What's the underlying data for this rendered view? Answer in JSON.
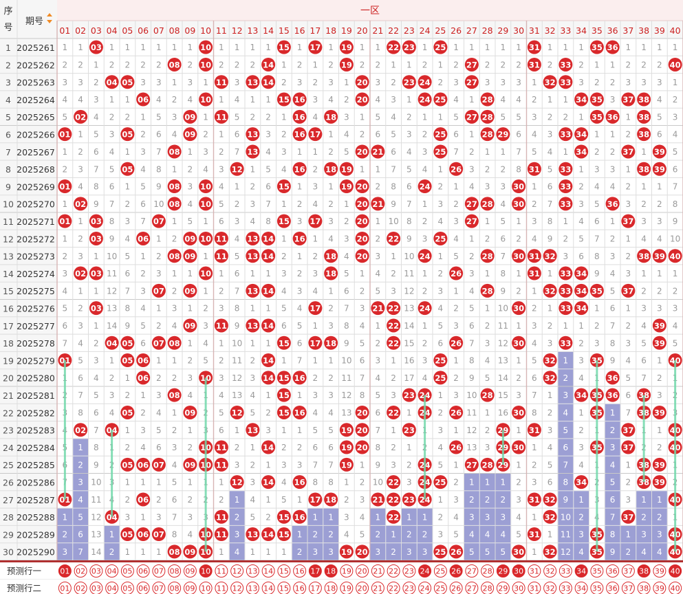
{
  "header": {
    "seq_label": "序号",
    "period_label": "期号",
    "zone_label": "一区",
    "sort_icon": "sort-arrows-icon"
  },
  "numbers": [
    "01",
    "02",
    "03",
    "04",
    "05",
    "06",
    "07",
    "08",
    "09",
    "10",
    "11",
    "12",
    "13",
    "14",
    "15",
    "16",
    "17",
    "18",
    "19",
    "20",
    "21",
    "22",
    "23",
    "24",
    "25",
    "26",
    "27",
    "28",
    "29",
    "30",
    "31",
    "32",
    "33",
    "34",
    "35",
    "36",
    "37",
    "38",
    "39",
    "40"
  ],
  "rows": [
    {
      "seq": "1",
      "period": "2025261",
      "hits": [
        "03",
        "10",
        "15",
        "17",
        "19",
        "22",
        "23",
        "25",
        "31",
        "35",
        "36"
      ]
    },
    {
      "seq": "2",
      "period": "2025262",
      "hits": [
        "08",
        "10",
        "14",
        "19",
        "27",
        "31",
        "33",
        "40"
      ]
    },
    {
      "seq": "3",
      "period": "2025263",
      "hits": [
        "04",
        "05",
        "11",
        "13",
        "14",
        "20",
        "23",
        "24",
        "27",
        "32",
        "33"
      ]
    },
    {
      "seq": "4",
      "period": "2025264",
      "hits": [
        "06",
        "10",
        "15",
        "16",
        "20",
        "24",
        "25",
        "28",
        "34",
        "35",
        "37",
        "38"
      ]
    },
    {
      "seq": "5",
      "period": "2025265",
      "hits": [
        "02",
        "09",
        "11",
        "16",
        "18",
        "27",
        "28",
        "35",
        "36",
        "38"
      ]
    },
    {
      "seq": "6",
      "period": "2025266",
      "hits": [
        "01",
        "05",
        "09",
        "13",
        "16",
        "17",
        "25",
        "28",
        "29",
        "33",
        "34",
        "38"
      ]
    },
    {
      "seq": "7",
      "period": "2025267",
      "hits": [
        "08",
        "13",
        "20",
        "21",
        "25",
        "34",
        "37",
        "39"
      ]
    },
    {
      "seq": "8",
      "period": "2025268",
      "hits": [
        "05",
        "12",
        "16",
        "18",
        "19",
        "26",
        "31",
        "33",
        "38",
        "39"
      ]
    },
    {
      "seq": "9",
      "period": "2025269",
      "hits": [
        "01",
        "08",
        "10",
        "15",
        "19",
        "20",
        "24",
        "30",
        "33"
      ]
    },
    {
      "seq": "10",
      "period": "2025270",
      "hits": [
        "02",
        "08",
        "10",
        "20",
        "21",
        "27",
        "28",
        "30",
        "33",
        "36"
      ]
    },
    {
      "seq": "11",
      "period": "2025271",
      "hits": [
        "01",
        "03",
        "07",
        "15",
        "17",
        "20",
        "27",
        "37"
      ]
    },
    {
      "seq": "12",
      "period": "2025272",
      "hits": [
        "03",
        "06",
        "09",
        "10",
        "11",
        "13",
        "14",
        "16",
        "20",
        "22",
        "25"
      ]
    },
    {
      "seq": "13",
      "period": "2025273",
      "hits": [
        "08",
        "09",
        "11",
        "13",
        "14",
        "18",
        "20",
        "24",
        "28",
        "30",
        "31",
        "32",
        "38",
        "39",
        "40"
      ]
    },
    {
      "seq": "14",
      "period": "2025274",
      "hits": [
        "02",
        "03",
        "10",
        "18",
        "26",
        "31",
        "33",
        "34"
      ]
    },
    {
      "seq": "15",
      "period": "2025275",
      "hits": [
        "07",
        "09",
        "13",
        "14",
        "28",
        "32",
        "33",
        "34",
        "35",
        "37"
      ]
    },
    {
      "seq": "16",
      "period": "2025276",
      "hits": [
        "03",
        "17",
        "21",
        "22",
        "24",
        "30",
        "33",
        "34"
      ]
    },
    {
      "seq": "17",
      "period": "2025277",
      "hits": [
        "09",
        "11",
        "13",
        "14",
        "22",
        "39"
      ]
    },
    {
      "seq": "18",
      "period": "2025278",
      "hits": [
        "04",
        "05",
        "07",
        "08",
        "15",
        "17",
        "18",
        "22",
        "26",
        "30",
        "33",
        "39"
      ]
    },
    {
      "seq": "19",
      "period": "2025279",
      "hits": [
        "01",
        "05",
        "06",
        "14",
        "25",
        "32",
        "35",
        "40"
      ]
    },
    {
      "seq": "20",
      "period": "2025280",
      "hits": [
        "06",
        "10",
        "14",
        "15",
        "16",
        "25",
        "32",
        "36"
      ]
    },
    {
      "seq": "21",
      "period": "2025281",
      "hits": [
        "08",
        "15",
        "23",
        "24",
        "28",
        "34",
        "35",
        "36",
        "38"
      ]
    },
    {
      "seq": "22",
      "period": "2025282",
      "hits": [
        "05",
        "09",
        "12",
        "15",
        "16",
        "20",
        "22",
        "24",
        "26",
        "30",
        "35",
        "38",
        "39"
      ]
    },
    {
      "seq": "23",
      "period": "2025283",
      "hits": [
        "02",
        "04",
        "13",
        "19",
        "20",
        "23",
        "29",
        "31",
        "37",
        "40"
      ]
    },
    {
      "seq": "24",
      "period": "2025284",
      "hits": [
        "10",
        "11",
        "14",
        "19",
        "20",
        "26",
        "29",
        "30",
        "35",
        "37",
        "40"
      ]
    },
    {
      "seq": "25",
      "period": "2025285",
      "hits": [
        "05",
        "06",
        "07",
        "09",
        "10",
        "11",
        "19",
        "24",
        "27",
        "28",
        "29",
        "38",
        "39"
      ]
    },
    {
      "seq": "26",
      "period": "2025286",
      "hits": [
        "12",
        "14",
        "16",
        "22",
        "24",
        "25",
        "34",
        "38",
        "39"
      ]
    },
    {
      "seq": "27",
      "period": "2025287",
      "hits": [
        "01",
        "06",
        "17",
        "18",
        "21",
        "22",
        "23",
        "24",
        "31",
        "32",
        "40"
      ]
    },
    {
      "seq": "28",
      "period": "2025288",
      "hits": [
        "04",
        "11",
        "15",
        "16",
        "22",
        "32",
        "37"
      ]
    },
    {
      "seq": "29",
      "period": "2025289",
      "hits": [
        "05",
        "06",
        "07",
        "10",
        "11",
        "13",
        "14",
        "15",
        "31",
        "35",
        "40"
      ]
    },
    {
      "seq": "30",
      "period": "2025290",
      "hits": [
        "08",
        "09",
        "10",
        "19",
        "20",
        "25",
        "26",
        "30",
        "32",
        "35",
        "40"
      ]
    }
  ],
  "predict": [
    {
      "label": "预测行一",
      "hits": [
        "01",
        "10",
        "17",
        "18",
        "24",
        "26",
        "29",
        "30",
        "34",
        "38",
        "40"
      ]
    },
    {
      "label": "预测行二",
      "hits": []
    }
  ],
  "colors": {
    "ball": "#d9282b",
    "header_red": "#cc1f1f",
    "gap_text": "#9a9a9a",
    "column_block": "#9c9fd4",
    "trend_line": "#72d9ab",
    "grid": "#dddddd",
    "separator": "#b03030"
  },
  "chart_data": {
    "type": "table",
    "title": "一区",
    "columns": [
      "序号",
      "期号",
      "01",
      "02",
      "03",
      "04",
      "05",
      "06",
      "07",
      "08",
      "09",
      "10",
      "11",
      "12",
      "13",
      "14",
      "15",
      "16",
      "17",
      "18",
      "19",
      "20",
      "21",
      "22",
      "23",
      "24",
      "25",
      "26",
      "27",
      "28",
      "29",
      "30",
      "31",
      "32",
      "33",
      "34",
      "35",
      "36",
      "37",
      "38",
      "39",
      "40"
    ],
    "row_labels_seq": [
      "1",
      "2",
      "3",
      "4",
      "5",
      "6",
      "7",
      "8",
      "9",
      "10",
      "11",
      "12",
      "13",
      "14",
      "15",
      "16",
      "17",
      "18",
      "19",
      "20",
      "21",
      "22",
      "23",
      "24",
      "25",
      "26",
      "27",
      "28",
      "29",
      "30"
    ],
    "row_labels_period": [
      "2025261",
      "2025262",
      "2025263",
      "2025264",
      "2025265",
      "2025266",
      "2025267",
      "2025268",
      "2025269",
      "2025270",
      "2025271",
      "2025272",
      "2025273",
      "2025274",
      "2025275",
      "2025276",
      "2025277",
      "2025278",
      "2025279",
      "2025280",
      "2025281",
      "2025282",
      "2025283",
      "2025284",
      "2025285",
      "2025286",
      "2025287",
      "2025288",
      "2025289",
      "2025290"
    ],
    "footer_rows": [
      "预测行一",
      "预测行二"
    ]
  }
}
